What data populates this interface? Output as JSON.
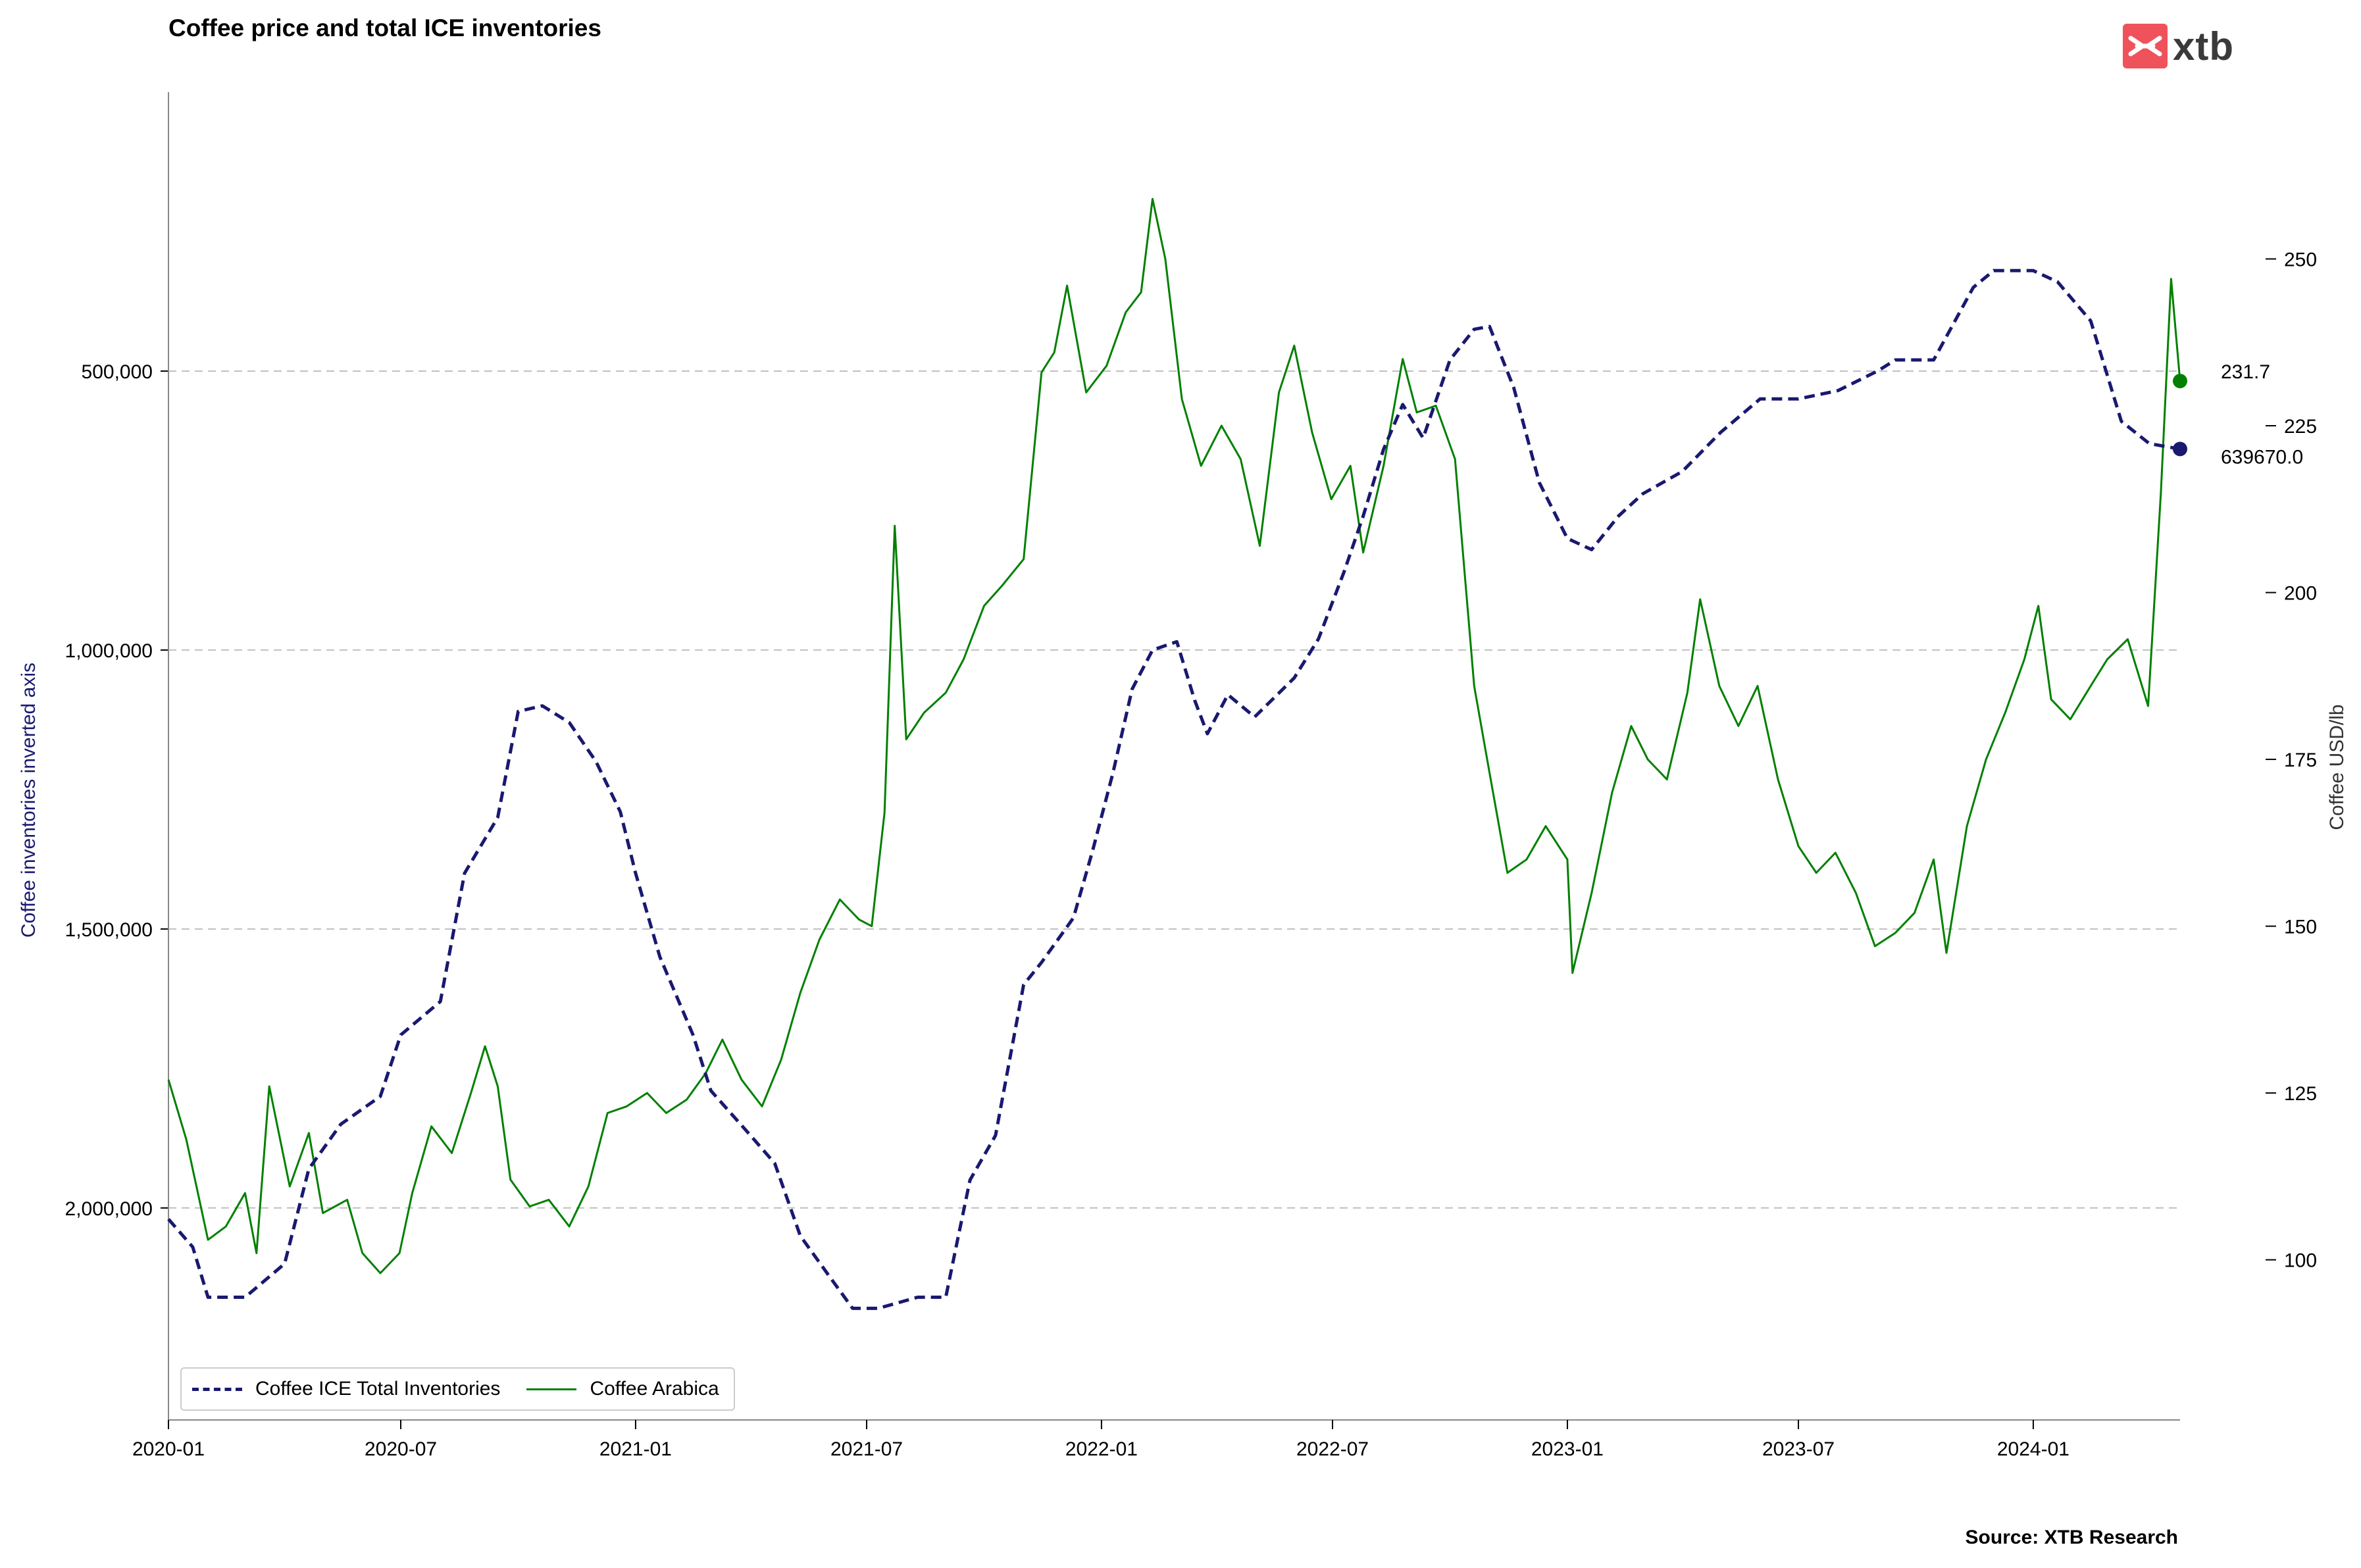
{
  "title": "Coffee price and total ICE inventories",
  "source": "Source: XTB Research",
  "logo_text": "xtb",
  "colors": {
    "inventories": "#191970",
    "arabica": "#008000",
    "grid": "#c0c0c0",
    "logo": "#f0525c"
  },
  "chart_data": {
    "type": "line",
    "title": "Coffee price and total ICE inventories",
    "grid": true,
    "legend_position": "lower-left",
    "x": {
      "type": "date",
      "range": [
        "2020-01-01",
        "2024-04-25"
      ],
      "ticks": [
        "2020-01",
        "2020-07",
        "2021-01",
        "2021-07",
        "2022-01",
        "2022-07",
        "2023-01",
        "2023-07",
        "2024-01"
      ]
    },
    "y_left": {
      "label": "Coffee inventories inverted axis",
      "inverted": true,
      "range": [
        2380000,
        0
      ],
      "ticks": [
        500000,
        1000000,
        1500000,
        2000000
      ],
      "tick_labels": [
        "500,000",
        "1,000,000",
        "1,500,000",
        "2,000,000"
      ]
    },
    "y_right": {
      "label": "Coffee USD/lb",
      "range": [
        76,
        275
      ],
      "ticks": [
        100,
        125,
        150,
        175,
        200,
        225,
        250
      ],
      "tick_labels": [
        "100",
        "125",
        "150",
        "175",
        "200",
        "225",
        "250"
      ]
    },
    "series": [
      {
        "name": "Coffee ICE Total Inventories",
        "axis": "left",
        "style": "dashed",
        "end_label": "639670.0",
        "points": [
          [
            "2020-01-01",
            2020000
          ],
          [
            "2020-01-20",
            2070000
          ],
          [
            "2020-02-01",
            2160000
          ],
          [
            "2020-03-01",
            2160000
          ],
          [
            "2020-04-01",
            2100000
          ],
          [
            "2020-04-20",
            1930000
          ],
          [
            "2020-05-15",
            1850000
          ],
          [
            "2020-06-15",
            1800000
          ],
          [
            "2020-07-01",
            1690000
          ],
          [
            "2020-08-01",
            1630000
          ],
          [
            "2020-08-20",
            1400000
          ],
          [
            "2020-09-15",
            1300000
          ],
          [
            "2020-10-01",
            1110000
          ],
          [
            "2020-10-20",
            1100000
          ],
          [
            "2020-11-10",
            1130000
          ],
          [
            "2020-12-01",
            1200000
          ],
          [
            "2020-12-20",
            1290000
          ],
          [
            "2021-01-01",
            1400000
          ],
          [
            "2021-01-20",
            1550000
          ],
          [
            "2021-02-15",
            1690000
          ],
          [
            "2021-03-01",
            1790000
          ],
          [
            "2021-04-01",
            1870000
          ],
          [
            "2021-04-20",
            1920000
          ],
          [
            "2021-05-10",
            2050000
          ],
          [
            "2021-06-01",
            2120000
          ],
          [
            "2021-06-20",
            2180000
          ],
          [
            "2021-07-10",
            2180000
          ],
          [
            "2021-08-10",
            2160000
          ],
          [
            "2021-09-01",
            2160000
          ],
          [
            "2021-09-10",
            2060000
          ],
          [
            "2021-09-20",
            1950000
          ],
          [
            "2021-10-10",
            1870000
          ],
          [
            "2021-11-01",
            1600000
          ],
          [
            "2021-11-15",
            1560000
          ],
          [
            "2021-12-10",
            1480000
          ],
          [
            "2021-12-25",
            1360000
          ],
          [
            "2022-01-10",
            1220000
          ],
          [
            "2022-01-25",
            1070000
          ],
          [
            "2022-02-10",
            1000000
          ],
          [
            "2022-03-01",
            985000
          ],
          [
            "2022-03-15",
            1090000
          ],
          [
            "2022-03-25",
            1150000
          ],
          [
            "2022-04-10",
            1080000
          ],
          [
            "2022-05-01",
            1120000
          ],
          [
            "2022-06-01",
            1050000
          ],
          [
            "2022-06-20",
            980000
          ],
          [
            "2022-07-10",
            860000
          ],
          [
            "2022-07-25",
            760000
          ],
          [
            "2022-08-10",
            640000
          ],
          [
            "2022-08-25",
            560000
          ],
          [
            "2022-09-10",
            620000
          ],
          [
            "2022-10-01",
            480000
          ],
          [
            "2022-10-20",
            425000
          ],
          [
            "2022-11-01",
            420000
          ],
          [
            "2022-11-20",
            530000
          ],
          [
            "2022-12-10",
            700000
          ],
          [
            "2023-01-01",
            800000
          ],
          [
            "2023-01-20",
            820000
          ],
          [
            "2023-02-10",
            760000
          ],
          [
            "2023-03-01",
            720000
          ],
          [
            "2023-04-01",
            680000
          ],
          [
            "2023-05-01",
            610000
          ],
          [
            "2023-06-01",
            550000
          ],
          [
            "2023-07-01",
            550000
          ],
          [
            "2023-08-01",
            535000
          ],
          [
            "2023-09-01",
            500000
          ],
          [
            "2023-09-15",
            480000
          ],
          [
            "2023-10-15",
            480000
          ],
          [
            "2023-11-15",
            350000
          ],
          [
            "2023-12-01",
            320000
          ],
          [
            "2024-01-01",
            320000
          ],
          [
            "2024-01-20",
            340000
          ],
          [
            "2024-02-15",
            410000
          ],
          [
            "2024-03-10",
            590000
          ],
          [
            "2024-04-01",
            630000
          ],
          [
            "2024-04-25",
            639670
          ]
        ]
      },
      {
        "name": "Coffee Arabica",
        "axis": "right",
        "style": "solid",
        "end_label": "231.7",
        "points": [
          [
            "2020-01-01",
            127
          ],
          [
            "2020-01-15",
            118
          ],
          [
            "2020-02-01",
            103
          ],
          [
            "2020-02-15",
            105
          ],
          [
            "2020-03-01",
            110
          ],
          [
            "2020-03-10",
            101
          ],
          [
            "2020-03-20",
            126
          ],
          [
            "2020-04-05",
            111
          ],
          [
            "2020-04-20",
            119
          ],
          [
            "2020-05-01",
            107
          ],
          [
            "2020-05-20",
            109
          ],
          [
            "2020-06-01",
            101
          ],
          [
            "2020-06-15",
            98
          ],
          [
            "2020-06-30",
            101
          ],
          [
            "2020-07-10",
            110
          ],
          [
            "2020-07-25",
            120
          ],
          [
            "2020-08-10",
            116
          ],
          [
            "2020-08-25",
            125
          ],
          [
            "2020-09-05",
            132
          ],
          [
            "2020-09-15",
            126
          ],
          [
            "2020-09-25",
            112
          ],
          [
            "2020-10-10",
            108
          ],
          [
            "2020-10-25",
            109
          ],
          [
            "2020-11-10",
            105
          ],
          [
            "2020-11-25",
            111
          ],
          [
            "2020-12-10",
            122
          ],
          [
            "2020-12-25",
            123
          ],
          [
            "2021-01-10",
            125
          ],
          [
            "2021-01-25",
            122
          ],
          [
            "2021-02-10",
            124
          ],
          [
            "2021-02-25",
            128
          ],
          [
            "2021-03-10",
            133
          ],
          [
            "2021-03-25",
            127
          ],
          [
            "2021-04-10",
            123
          ],
          [
            "2021-04-25",
            130
          ],
          [
            "2021-05-10",
            140
          ],
          [
            "2021-05-25",
            148
          ],
          [
            "2021-06-10",
            154
          ],
          [
            "2021-06-25",
            151
          ],
          [
            "2021-07-05",
            150
          ],
          [
            "2021-07-15",
            167
          ],
          [
            "2021-07-23",
            210
          ],
          [
            "2021-08-01",
            178
          ],
          [
            "2021-08-15",
            182
          ],
          [
            "2021-09-01",
            185
          ],
          [
            "2021-09-15",
            190
          ],
          [
            "2021-10-01",
            198
          ],
          [
            "2021-10-15",
            201
          ],
          [
            "2021-11-01",
            205
          ],
          [
            "2021-11-15",
            233
          ],
          [
            "2021-11-25",
            236
          ],
          [
            "2021-12-05",
            246
          ],
          [
            "2021-12-20",
            230
          ],
          [
            "2022-01-05",
            234
          ],
          [
            "2022-01-20",
            242
          ],
          [
            "2022-02-01",
            245
          ],
          [
            "2022-02-10",
            259
          ],
          [
            "2022-02-20",
            250
          ],
          [
            "2022-03-05",
            229
          ],
          [
            "2022-03-20",
            219
          ],
          [
            "2022-04-05",
            225
          ],
          [
            "2022-04-20",
            220
          ],
          [
            "2022-05-05",
            207
          ],
          [
            "2022-05-20",
            230
          ],
          [
            "2022-06-01",
            237
          ],
          [
            "2022-06-15",
            224
          ],
          [
            "2022-06-30",
            214
          ],
          [
            "2022-07-15",
            219
          ],
          [
            "2022-07-25",
            206
          ],
          [
            "2022-08-10",
            219
          ],
          [
            "2022-08-25",
            235
          ],
          [
            "2022-09-05",
            227
          ],
          [
            "2022-09-20",
            228
          ],
          [
            "2022-10-05",
            220
          ],
          [
            "2022-10-20",
            186
          ],
          [
            "2022-11-01",
            173
          ],
          [
            "2022-11-15",
            158
          ],
          [
            "2022-11-30",
            160
          ],
          [
            "2022-12-15",
            165
          ],
          [
            "2023-01-01",
            160
          ],
          [
            "2023-01-05",
            143
          ],
          [
            "2023-01-20",
            155
          ],
          [
            "2023-02-05",
            170
          ],
          [
            "2023-02-20",
            180
          ],
          [
            "2023-03-05",
            175
          ],
          [
            "2023-03-20",
            172
          ],
          [
            "2023-04-05",
            185
          ],
          [
            "2023-04-15",
            199
          ],
          [
            "2023-04-30",
            186
          ],
          [
            "2023-05-15",
            180
          ],
          [
            "2023-05-30",
            186
          ],
          [
            "2023-06-15",
            172
          ],
          [
            "2023-07-01",
            162
          ],
          [
            "2023-07-15",
            158
          ],
          [
            "2023-07-30",
            161
          ],
          [
            "2023-08-15",
            155
          ],
          [
            "2023-08-30",
            147
          ],
          [
            "2023-09-15",
            149
          ],
          [
            "2023-09-30",
            152
          ],
          [
            "2023-10-15",
            160
          ],
          [
            "2023-10-25",
            146
          ],
          [
            "2023-11-10",
            165
          ],
          [
            "2023-11-25",
            175
          ],
          [
            "2023-12-10",
            182
          ],
          [
            "2023-12-25",
            190
          ],
          [
            "2024-01-05",
            198
          ],
          [
            "2024-01-15",
            184
          ],
          [
            "2024-01-30",
            181
          ],
          [
            "2024-02-15",
            186
          ],
          [
            "2024-02-28",
            190
          ],
          [
            "2024-03-15",
            193
          ],
          [
            "2024-03-31",
            183
          ],
          [
            "2024-04-10",
            215
          ],
          [
            "2024-04-18",
            247
          ],
          [
            "2024-04-25",
            231.7
          ]
        ]
      }
    ]
  }
}
